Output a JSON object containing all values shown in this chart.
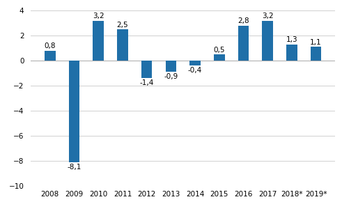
{
  "categories": [
    "2008",
    "2009",
    "2010",
    "2011",
    "2012",
    "2013",
    "2014",
    "2015",
    "2016",
    "2017",
    "2018*",
    "2019*"
  ],
  "values": [
    0.8,
    -8.1,
    3.2,
    2.5,
    -1.4,
    -0.9,
    -0.4,
    0.5,
    2.8,
    3.2,
    1.3,
    1.1
  ],
  "labels": [
    "0,8",
    "-8,1",
    "3,2",
    "2,5",
    "-1,4",
    "-0,9",
    "-0,4",
    "0,5",
    "2,8",
    "3,2",
    "1,3",
    "1,1"
  ],
  "bar_color": "#1f6fa8",
  "ylim": [
    -10,
    4
  ],
  "yticks": [
    -10,
    -8,
    -6,
    -4,
    -2,
    0,
    2,
    4
  ],
  "background_color": "#ffffff",
  "grid_color": "#d0d0d0",
  "label_fontsize": 7.5,
  "tick_fontsize": 7.5,
  "bar_width": 0.45
}
